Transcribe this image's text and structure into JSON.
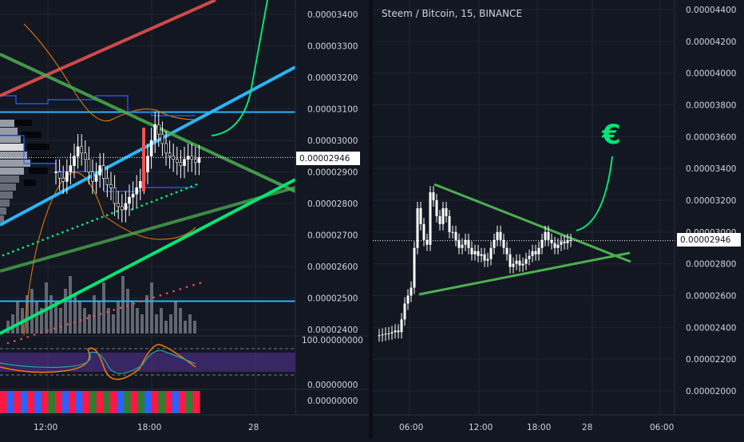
{
  "colors": {
    "background": "#131722",
    "grid": "#1f2431",
    "candle": "#ffffff",
    "trend_green": "#4caf50",
    "bright_green": "#00e676",
    "red_line": "#ef5350",
    "cyan_line": "#29b6f6",
    "blue_band": "#2962ff",
    "orange_band": "#f57c00",
    "volume": "#787b86",
    "oscillator_fill": "#673ab7"
  },
  "right": {
    "title": "Steem / Bitcoin, 15, BINANCE",
    "price_tag": "0.00002946",
    "euro_symbol": "€",
    "icon": "euro-icon",
    "y_ticks": [
      "0.00004400",
      "0.00004200",
      "0.00004000",
      "0.00003800",
      "0.00003600",
      "0.00003400",
      "0.00003200",
      "0.00003000",
      "0.00002800",
      "0.00002600",
      "0.00002400",
      "0.00002200",
      "0.00002000"
    ],
    "x_ticks": [
      "06:00",
      "12:00",
      "18:00",
      "28",
      "06:00"
    ]
  },
  "left": {
    "price_tag": "0.00002946",
    "y_ticks": [
      "0.00003400",
      "0.00003300",
      "0.00003200",
      "0.00003100",
      "0.00003000",
      "0.00002900",
      "0.00002800",
      "0.00002700",
      "0.00002600",
      "0.00002500",
      "0.00002400"
    ],
    "osc_ticks": [
      "100.00000000",
      "0.00000000"
    ],
    "bar_tick": "0.00000000",
    "x_ticks": [
      "12:00",
      "18:00",
      "28"
    ]
  },
  "chart_data": [
    {
      "type": "line",
      "title": "Steem / Bitcoin, 15, BINANCE",
      "price_last": 2.946e-05,
      "ylim": [
        1.95e-05,
        4.48e-05
      ],
      "grid": true,
      "x": [
        0,
        1,
        2,
        3,
        4,
        5,
        6,
        7,
        8,
        9,
        10,
        11,
        12,
        13,
        14,
        15,
        16,
        17,
        18,
        19,
        20,
        21,
        22,
        23,
        24,
        25,
        26,
        27,
        28,
        29,
        30,
        31,
        32,
        33,
        34,
        35,
        36,
        37,
        38,
        39,
        40,
        41,
        42,
        43,
        44,
        45,
        46,
        47,
        48,
        49,
        50,
        51,
        52,
        53,
        54,
        55,
        56,
        57,
        58,
        59,
        60
      ],
      "series": [
        {
          "values": [
            2.35e-05,
            2.355e-05,
            2.36e-05,
            2.362e-05,
            2.37e-05,
            2.38e-05,
            2.37e-05,
            2.45e-05,
            2.55e-05,
            2.6e-05,
            2.65e-05,
            2.9e-05,
            3.15e-05,
            3.05e-05,
            2.95e-05,
            2.92e-05,
            3.25e-05,
            3.2e-05,
            3.1e-05,
            3.05e-05,
            3.15e-05,
            3.1e-05,
            3e-05,
            3e-05,
            2.95e-05,
            2.9e-05,
            2.92e-05,
            2.95e-05,
            2.9e-05,
            2.86e-05,
            2.88e-05,
            2.85e-05,
            2.86e-05,
            2.82e-05,
            2.83e-05,
            2.9e-05,
            2.95e-05,
            3e-05,
            2.95e-05,
            2.9e-05,
            2.86e-05,
            2.78e-05,
            2.8e-05,
            2.82e-05,
            2.79e-05,
            2.8e-05,
            2.83e-05,
            2.85e-05,
            2.88e-05,
            2.86e-05,
            2.9e-05,
            2.95e-05,
            3e-05,
            2.95e-05,
            2.93e-05,
            2.9e-05,
            2.92e-05,
            2.94e-05,
            2.93e-05,
            2.95e-05,
            2.946e-05
          ]
        }
      ],
      "annotations": [
        {
          "kind": "triangle_upper",
          "from": [
            11,
            3.29e-05
          ],
          "to": [
            44,
            2.82e-05
          ]
        },
        {
          "kind": "triangle_lower",
          "from": [
            8,
            2.6e-05
          ],
          "to": [
            44,
            2.87e-05
          ]
        },
        {
          "kind": "projection_arrow",
          "note": "€"
        }
      ]
    },
    {
      "type": "line",
      "price_last": 2.946e-05,
      "ylim": [
        2.37e-05,
        3.45e-05
      ],
      "grid": true,
      "x": [
        0,
        1,
        2,
        3,
        4,
        5,
        6,
        7,
        8,
        9,
        10,
        11,
        12,
        13,
        14,
        15,
        16,
        17,
        18,
        19,
        20,
        21,
        22,
        23,
        24,
        25,
        26,
        27,
        28,
        29,
        30,
        31,
        32,
        33,
        34,
        35,
        36,
        37,
        38,
        39
      ],
      "series": [
        {
          "values": [
            2.9e-05,
            2.88e-05,
            2.87e-05,
            2.9e-05,
            2.92e-05,
            2.95e-05,
            2.98e-05,
            2.96e-05,
            2.94e-05,
            2.9e-05,
            2.87e-05,
            2.89e-05,
            2.92e-05,
            2.88e-05,
            2.86e-05,
            2.85e-05,
            2.8e-05,
            2.79e-05,
            2.78e-05,
            2.8e-05,
            2.82e-05,
            2.83e-05,
            2.85e-05,
            2.87e-05,
            2.9e-05,
            2.95e-05,
            3e-05,
            3.05e-05,
            3.02e-05,
            2.99e-05,
            2.96e-05,
            2.95e-05,
            2.94e-05,
            2.93e-05,
            2.92e-05,
            2.94e-05,
            2.95e-05,
            2.94e-05,
            2.93e-05,
            2.946e-05
          ]
        }
      ],
      "horizontal_levels": [
        3.09e-05,
        2.49e-05
      ],
      "volume": [
        2,
        3,
        5,
        4,
        6,
        7,
        5,
        4,
        8,
        6,
        5,
        4,
        7,
        9,
        6,
        5,
        4,
        3,
        6,
        5,
        8,
        4,
        3,
        5,
        9,
        7,
        5,
        4,
        3,
        6,
        8,
        3,
        4,
        2,
        3,
        5,
        4,
        2,
        3,
        2
      ],
      "oscillator_ylim": [
        0,
        100
      ],
      "colored_bar_segments": [
        "red",
        "blue",
        "red",
        "blue",
        "red",
        "blue",
        "red",
        "green",
        "red",
        "blue",
        "red",
        "blue",
        "red",
        "green",
        "red",
        "green",
        "red",
        "blue",
        "green",
        "red",
        "green",
        "blue",
        "red",
        "green",
        "red",
        "blue",
        "red",
        "green",
        "red"
      ]
    }
  ]
}
